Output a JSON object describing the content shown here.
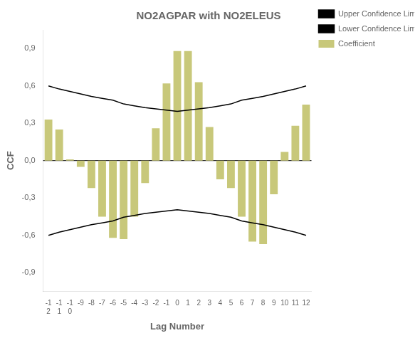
{
  "chart_data": {
    "type": "bar",
    "title": "NO2AGPAR with NO2ELEUS",
    "xlabel": "Lag Number",
    "ylabel": "CCF",
    "categories": [
      "-1\n2",
      "-1\n1",
      "-1\n0",
      "-9",
      "-8",
      "-7",
      "-6",
      "-5",
      "-4",
      "-3",
      "-2",
      "-1",
      "0",
      "1",
      "2",
      "3",
      "4",
      "5",
      "6",
      "7",
      "8",
      "9",
      "10",
      "11",
      "12"
    ],
    "series": [
      {
        "name": "Coefficient",
        "type": "bar",
        "color": "#c8c87a",
        "values": [
          0.33,
          0.25,
          0.01,
          -0.05,
          -0.22,
          -0.45,
          -0.62,
          -0.63,
          -0.45,
          -0.18,
          0.26,
          0.62,
          0.88,
          0.88,
          0.63,
          0.27,
          -0.15,
          -0.22,
          -0.45,
          -0.65,
          -0.67,
          -0.27,
          0.07,
          0.28,
          0.45
        ]
      },
      {
        "name": "Upper Confidence Limit",
        "type": "line",
        "color": "#000000",
        "values": [
          0.6,
          0.575,
          0.555,
          0.535,
          0.515,
          0.5,
          0.485,
          0.455,
          0.44,
          0.425,
          0.415,
          0.405,
          0.395,
          0.405,
          0.415,
          0.425,
          0.44,
          0.455,
          0.485,
          0.5,
          0.515,
          0.535,
          0.555,
          0.575,
          0.6
        ]
      },
      {
        "name": "Lower Confidence Limit",
        "type": "line",
        "color": "#000000",
        "values": [
          -0.6,
          -0.575,
          -0.555,
          -0.535,
          -0.515,
          -0.5,
          -0.485,
          -0.455,
          -0.44,
          -0.425,
          -0.415,
          -0.405,
          -0.395,
          -0.405,
          -0.415,
          -0.425,
          -0.44,
          -0.455,
          -0.485,
          -0.5,
          -0.515,
          -0.535,
          -0.555,
          -0.575,
          -0.6
        ]
      }
    ],
    "ylim": [
      -1.05,
      1.05
    ],
    "yticks": [
      {
        "value": -0.9,
        "label": "-0,9"
      },
      {
        "value": -0.6,
        "label": "-0,6"
      },
      {
        "value": -0.3,
        "label": "-0,3"
      },
      {
        "value": 0.0,
        "label": "0,0"
      },
      {
        "value": 0.3,
        "label": "0,3"
      },
      {
        "value": 0.6,
        "label": "0,6"
      },
      {
        "value": 0.9,
        "label": "0,9"
      }
    ],
    "grid": false,
    "legend": "right"
  }
}
